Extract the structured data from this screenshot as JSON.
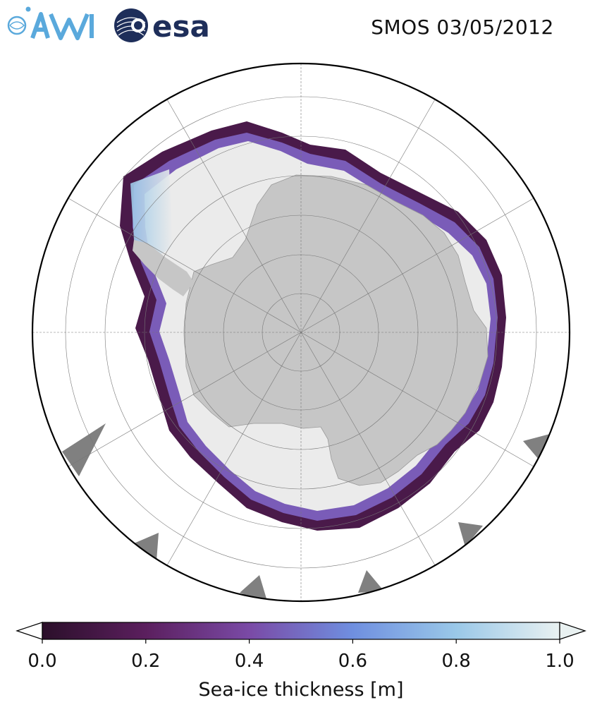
{
  "header": {
    "title": "SMOS 03/05/2012",
    "logos": [
      {
        "name": "awi-logo",
        "text": "AWI",
        "color": "#5aa9dc"
      },
      {
        "name": "esa-logo",
        "text": "esa",
        "color": "#1e2e5a"
      }
    ]
  },
  "map": {
    "projection": "south-polar-stereographic",
    "region": "Antarctica",
    "gridlines": true,
    "colors": {
      "land": "#c6c6c6",
      "landmask_outside": "#808080",
      "thin_ice": "#3d1436",
      "thick_ice": "#ebebeb",
      "ocean": "#ffffff"
    }
  },
  "colorbar": {
    "label": "Sea-ice thickness [m]",
    "colormap": [
      "#2b0f2a",
      "#5b1f5e",
      "#7a4aa6",
      "#6f8fe0",
      "#9ac8e8",
      "#e9f1f1"
    ],
    "extend": "both",
    "range": [
      0.0,
      1.0
    ],
    "ticks": [
      {
        "value": 0.0,
        "label": "0.0"
      },
      {
        "value": 0.2,
        "label": "0.2"
      },
      {
        "value": 0.4,
        "label": "0.4"
      },
      {
        "value": 0.6,
        "label": "0.6"
      },
      {
        "value": 0.8,
        "label": "0.8"
      },
      {
        "value": 1.0,
        "label": "1.0"
      }
    ]
  }
}
